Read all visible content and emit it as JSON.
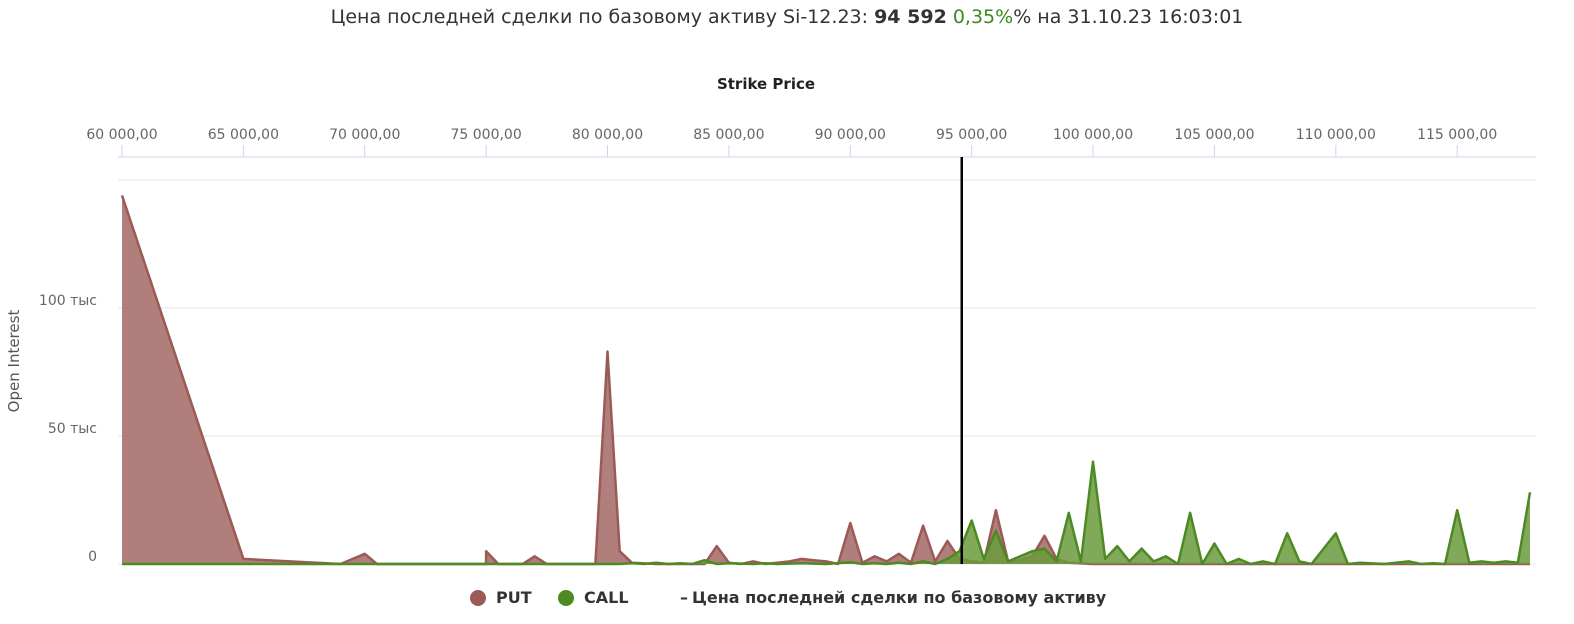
{
  "header": {
    "prefix": "Цена последней сделки по базовому активу Si-12.23:",
    "price": "94 592",
    "change": "0,35%",
    "suffix": "% на 31.10.23 16:03:01"
  },
  "colors": {
    "put_fill": "#a7716e",
    "put_line": "#9c5a57",
    "call_fill": "#6a9a3c",
    "call_line": "#4e8a23",
    "marker": "#000000",
    "grid": "#e4e4e4",
    "axis": "#ccd6eb"
  },
  "chart_data": {
    "type": "area",
    "xlabel": "Strike Price",
    "ylabel": "Open Interest",
    "x_ticks": [
      60000,
      65000,
      70000,
      75000,
      80000,
      85000,
      90000,
      95000,
      100000,
      105000,
      110000,
      115000
    ],
    "x_tick_labels": [
      "60 000,00",
      "65 000,00",
      "70 000,00",
      "75 000,00",
      "80 000,00",
      "85 000,00",
      "90 000,00",
      "95 000,00",
      "100 000,00",
      "105 000,00",
      "110 000,00",
      "115 000,00"
    ],
    "y_ticks": [
      0,
      50000,
      100000
    ],
    "y_tick_labels": [
      "0",
      "50 тыс",
      "100 тыс"
    ],
    "xlim": [
      60000,
      118000
    ],
    "ylim": [
      0,
      150000
    ],
    "x_axis_position": "top",
    "grid": true,
    "legend_position": "bottom-center",
    "reference_line": {
      "x": 94592,
      "label": "Цена последней сделки по базовому активу"
    },
    "series": [
      {
        "name": "PUT",
        "points": [
          [
            60000,
            144000
          ],
          [
            65000,
            2000
          ],
          [
            69000,
            0
          ],
          [
            70000,
            4000
          ],
          [
            70500,
            0
          ],
          [
            75000,
            0
          ],
          [
            75000,
            5000
          ],
          [
            75500,
            0
          ],
          [
            76500,
            0
          ],
          [
            77000,
            3000
          ],
          [
            77500,
            0
          ],
          [
            79500,
            0
          ],
          [
            80000,
            83000
          ],
          [
            80500,
            5000
          ],
          [
            81000,
            500
          ],
          [
            82000,
            0
          ],
          [
            84000,
            0
          ],
          [
            84500,
            7000
          ],
          [
            85000,
            500
          ],
          [
            85500,
            0
          ],
          [
            86000,
            1000
          ],
          [
            86500,
            0
          ],
          [
            87500,
            1000
          ],
          [
            88000,
            2000
          ],
          [
            88500,
            1500
          ],
          [
            89000,
            1000
          ],
          [
            89500,
            0
          ],
          [
            90000,
            16000
          ],
          [
            90500,
            500
          ],
          [
            91000,
            3000
          ],
          [
            91500,
            1000
          ],
          [
            92000,
            4000
          ],
          [
            92500,
            500
          ],
          [
            93000,
            15000
          ],
          [
            93500,
            1000
          ],
          [
            94000,
            9000
          ],
          [
            94500,
            2000
          ],
          [
            95000,
            1000
          ],
          [
            95500,
            500
          ],
          [
            96000,
            21000
          ],
          [
            96500,
            1000
          ],
          [
            97000,
            1500
          ],
          [
            97500,
            3000
          ],
          [
            98000,
            11000
          ],
          [
            98500,
            2000
          ],
          [
            99000,
            500
          ],
          [
            100000,
            0
          ],
          [
            101000,
            0
          ],
          [
            105000,
            0
          ],
          [
            110000,
            0
          ],
          [
            118000,
            0
          ]
        ]
      },
      {
        "name": "CALL",
        "points": [
          [
            60000,
            0
          ],
          [
            80000,
            0
          ],
          [
            80500,
            0
          ],
          [
            81000,
            300
          ],
          [
            81500,
            0
          ],
          [
            82000,
            500
          ],
          [
            82500,
            0
          ],
          [
            83000,
            300
          ],
          [
            83500,
            0
          ],
          [
            84000,
            1500
          ],
          [
            84500,
            0
          ],
          [
            85000,
            300
          ],
          [
            86000,
            0
          ],
          [
            86500,
            300
          ],
          [
            87000,
            0
          ],
          [
            88000,
            300
          ],
          [
            89000,
            0
          ],
          [
            90000,
            700
          ],
          [
            90500,
            0
          ],
          [
            91000,
            300
          ],
          [
            91500,
            0
          ],
          [
            92000,
            500
          ],
          [
            92500,
            0
          ],
          [
            93000,
            1000
          ],
          [
            93500,
            0
          ],
          [
            94000,
            2000
          ],
          [
            94500,
            5000
          ],
          [
            95000,
            17000
          ],
          [
            95500,
            2000
          ],
          [
            96000,
            13000
          ],
          [
            96500,
            1000
          ],
          [
            97000,
            3000
          ],
          [
            97500,
            5000
          ],
          [
            98000,
            6000
          ],
          [
            98500,
            1000
          ],
          [
            99000,
            20000
          ],
          [
            99500,
            1000
          ],
          [
            100000,
            40000
          ],
          [
            100500,
            2000
          ],
          [
            101000,
            7000
          ],
          [
            101500,
            1000
          ],
          [
            102000,
            6000
          ],
          [
            102500,
            1000
          ],
          [
            103000,
            3000
          ],
          [
            103500,
            0
          ],
          [
            104000,
            20000
          ],
          [
            104500,
            0
          ],
          [
            105000,
            8000
          ],
          [
            105500,
            0
          ],
          [
            106000,
            2000
          ],
          [
            106500,
            0
          ],
          [
            107000,
            1000
          ],
          [
            107500,
            0
          ],
          [
            108000,
            12000
          ],
          [
            108500,
            1000
          ],
          [
            109000,
            0
          ],
          [
            110000,
            12000
          ],
          [
            110500,
            0
          ],
          [
            111000,
            500
          ],
          [
            112000,
            0
          ],
          [
            113000,
            1000
          ],
          [
            113500,
            0
          ],
          [
            114000,
            300
          ],
          [
            114500,
            0
          ],
          [
            115000,
            21000
          ],
          [
            115500,
            500
          ],
          [
            116000,
            1000
          ],
          [
            116500,
            500
          ],
          [
            117000,
            1000
          ],
          [
            117500,
            500
          ],
          [
            118000,
            28000
          ]
        ]
      }
    ]
  }
}
